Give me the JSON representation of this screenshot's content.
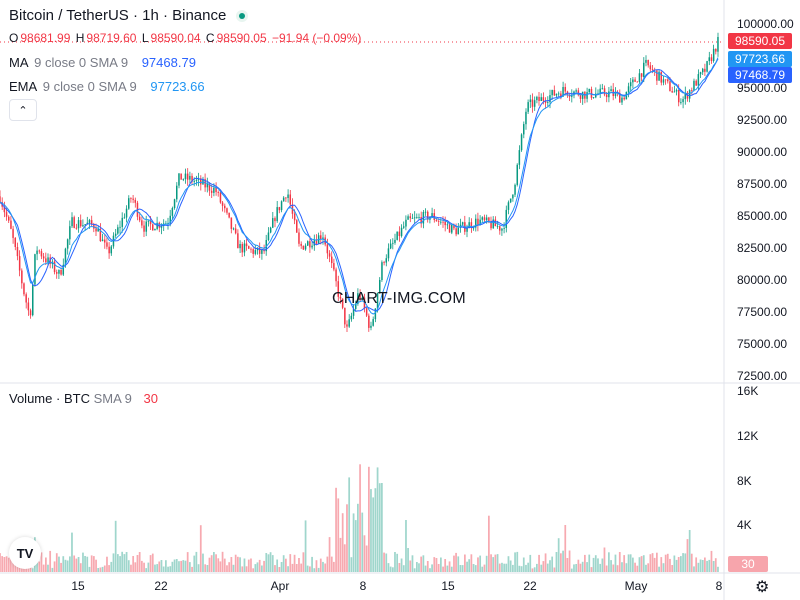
{
  "header": {
    "title": "Bitcoin / TetherUS · 1h · Binance",
    "ohlc": {
      "o_label": "O",
      "o": "98681.99",
      "h_label": "H",
      "h": "98719.60",
      "l_label": "L",
      "l": "98590.04",
      "c_label": "C",
      "c": "98590.05",
      "change": "−91.94 (−0.09%)"
    },
    "ma": {
      "name": "MA",
      "params": "9 close 0 SMA 9",
      "value": "97468.79"
    },
    "ema": {
      "name": "EMA",
      "params": "9 close 0 SMA 9",
      "value": "97723.66"
    },
    "collapse_icon": "chevron-up-icon"
  },
  "watermark": "CHART-IMG.COM",
  "volume_legend": {
    "name": "Volume",
    "sep": "·",
    "unit": "BTC",
    "params": "SMA 9",
    "value": "30"
  },
  "price_axis": {
    "labels": [
      "100000.00",
      "97500.00",
      "95000.00",
      "92500.00",
      "90000.00",
      "87500.00",
      "85000.00",
      "82500.00",
      "80000.00",
      "77500.00",
      "75000.00",
      "72500.00"
    ]
  },
  "price_tags": {
    "last": "98590.05",
    "ema": "97723.66",
    "ma": "97468.79"
  },
  "volume_axis": {
    "labels": [
      "16K",
      "12K",
      "8K",
      "4K"
    ],
    "last": "30"
  },
  "time_axis": {
    "labels": [
      "15",
      "22",
      "Apr",
      "8",
      "15",
      "22",
      "May",
      "8"
    ]
  },
  "colors": {
    "up": "#089981",
    "down": "#f23645",
    "ma": "#2962ff",
    "ema": "#2196f3",
    "vol_up": "#9fd6cc",
    "vol_down": "#f7a9b0",
    "text": "#131722"
  },
  "chart_data": {
    "type": "candlestick",
    "timeframe": "1h",
    "symbol": "BTCUSDT",
    "exchange": "Binance",
    "x_range": [
      "Mar 10",
      "May 8"
    ],
    "ylim": [
      72500,
      100000
    ],
    "volume_ylim": [
      0,
      16000
    ],
    "price_path": [
      {
        "date": "Mar 9",
        "price": 86500
      },
      {
        "date": "Mar 10",
        "price": 83500
      },
      {
        "date": "Mar 11",
        "price": 79000
      },
      {
        "date": "Mar 11",
        "price": 77000
      },
      {
        "date": "Mar 12",
        "price": 82500
      },
      {
        "date": "Mar 14",
        "price": 80300
      },
      {
        "date": "Mar 15",
        "price": 84500
      },
      {
        "date": "Mar 17",
        "price": 84200
      },
      {
        "date": "Mar 18",
        "price": 82000
      },
      {
        "date": "Mar 19",
        "price": 84200
      },
      {
        "date": "Mar 20",
        "price": 86500
      },
      {
        "date": "Mar 21",
        "price": 84100
      },
      {
        "date": "Mar 23",
        "price": 84500
      },
      {
        "date": "Mar 24",
        "price": 88000
      },
      {
        "date": "Mar 25",
        "price": 87800
      },
      {
        "date": "Mar 27",
        "price": 87000
      },
      {
        "date": "Mar 28",
        "price": 84800
      },
      {
        "date": "Mar 29",
        "price": 82500
      },
      {
        "date": "Mar 31",
        "price": 82000
      },
      {
        "date": "Apr 1",
        "price": 85000
      },
      {
        "date": "Apr 2",
        "price": 87000
      },
      {
        "date": "Apr 3",
        "price": 82500
      },
      {
        "date": "Apr 5",
        "price": 83500
      },
      {
        "date": "Apr 6",
        "price": 80000
      },
      {
        "date": "Apr 7",
        "price": 76000
      },
      {
        "date": "Apr 8",
        "price": 79000
      },
      {
        "date": "Apr 9",
        "price": 76000
      },
      {
        "date": "Apr 10",
        "price": 81500
      },
      {
        "date": "Apr 12",
        "price": 84500
      },
      {
        "date": "Apr 14",
        "price": 85000
      },
      {
        "date": "Apr 16",
        "price": 83800
      },
      {
        "date": "Apr 18",
        "price": 84600
      },
      {
        "date": "Apr 20",
        "price": 84000
      },
      {
        "date": "Apr 21",
        "price": 87500
      },
      {
        "date": "Apr 22",
        "price": 93500
      },
      {
        "date": "Apr 23",
        "price": 94000
      },
      {
        "date": "Apr 25",
        "price": 94800
      },
      {
        "date": "Apr 27",
        "price": 94500
      },
      {
        "date": "Apr 29",
        "price": 94600
      },
      {
        "date": "Apr 30",
        "price": 94200
      },
      {
        "date": "May 2",
        "price": 96800
      },
      {
        "date": "May 4",
        "price": 95000
      },
      {
        "date": "May 5",
        "price": 94000
      },
      {
        "date": "May 7",
        "price": 96500
      },
      {
        "date": "May 8",
        "price": 98590
      }
    ]
  }
}
